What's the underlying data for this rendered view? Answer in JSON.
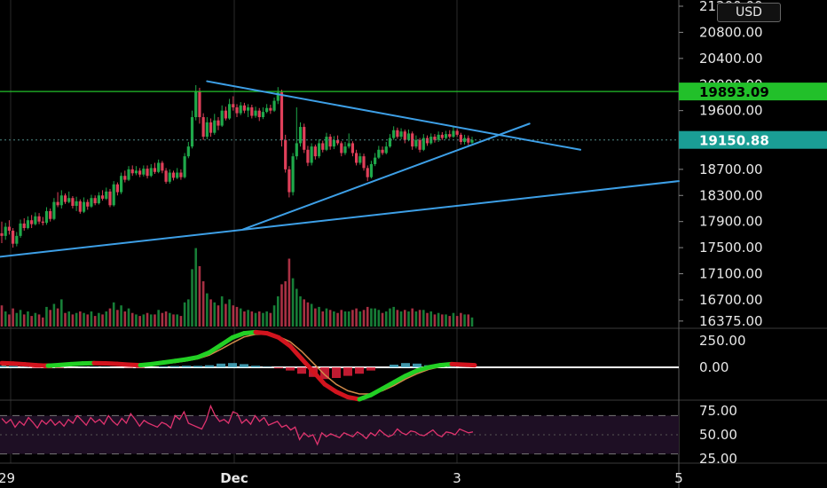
{
  "currency": "USD",
  "colors": {
    "background": "#000000",
    "up": "#1fa84a",
    "down": "#e0405a",
    "trendline": "#3d9fe6",
    "resistance": "#22c02a",
    "current_tag": "#1a9e95",
    "rsi_line": "#e0336e",
    "rsi_band": "#1e0f24"
  },
  "price_axis": {
    "ticks": [
      "21200.00",
      "20800.00",
      "20400.00",
      "20000.00",
      "19600.00",
      "18700.00",
      "18300.00",
      "17900.00",
      "17500.00",
      "17100.00",
      "16700.00",
      "16375.00"
    ]
  },
  "price_tags": {
    "resistance": "19893.09",
    "current": "19150.88"
  },
  "macd_axis": {
    "ticks": [
      "250.00",
      "0.00"
    ]
  },
  "rsi_axis": {
    "ticks": [
      "75.00",
      "50.00",
      "25.00"
    ]
  },
  "time_axis": {
    "labels": [
      "29",
      "Dec",
      "3",
      "5"
    ]
  },
  "chart_data": {
    "type": "candlestick",
    "title": "",
    "price_range": [
      16375,
      21200
    ],
    "horizontal_levels": [
      19893.09,
      19150.88
    ],
    "candles": [
      [
        17720,
        17680,
        17900,
        17570,
        14
      ],
      [
        17680,
        17820,
        17880,
        17620,
        10
      ],
      [
        17820,
        17760,
        17920,
        17700,
        8
      ],
      [
        17760,
        17560,
        17800,
        17500,
        12
      ],
      [
        17560,
        17680,
        17740,
        17520,
        9
      ],
      [
        17680,
        17870,
        17930,
        17650,
        11
      ],
      [
        17870,
        17800,
        17950,
        17760,
        8
      ],
      [
        17800,
        17920,
        17980,
        17780,
        10
      ],
      [
        17920,
        17860,
        18000,
        17800,
        7
      ],
      [
        17860,
        17980,
        18040,
        17840,
        9
      ],
      [
        17980,
        17900,
        18030,
        17860,
        8
      ],
      [
        17900,
        17880,
        17970,
        17840,
        6
      ],
      [
        17880,
        18060,
        18120,
        17850,
        13
      ],
      [
        18060,
        17940,
        18100,
        17900,
        11
      ],
      [
        17940,
        18200,
        18260,
        17920,
        15
      ],
      [
        18200,
        18150,
        18350,
        18120,
        12
      ],
      [
        18150,
        18300,
        18380,
        18100,
        18
      ],
      [
        18300,
        18200,
        18330,
        18170,
        9
      ],
      [
        18200,
        18260,
        18360,
        18180,
        10
      ],
      [
        18260,
        18140,
        18290,
        18100,
        8
      ],
      [
        18140,
        18210,
        18280,
        18060,
        9
      ],
      [
        18210,
        18050,
        18240,
        18020,
        10
      ],
      [
        18050,
        18200,
        18270,
        18030,
        9
      ],
      [
        18200,
        18130,
        18240,
        18080,
        8
      ],
      [
        18130,
        18260,
        18310,
        18110,
        10
      ],
      [
        18260,
        18180,
        18300,
        18150,
        7
      ],
      [
        18180,
        18300,
        18350,
        18160,
        9
      ],
      [
        18300,
        18250,
        18380,
        18220,
        8
      ],
      [
        18250,
        18360,
        18420,
        18230,
        10
      ],
      [
        18360,
        18150,
        18400,
        18120,
        12
      ],
      [
        18150,
        18470,
        18520,
        18130,
        16
      ],
      [
        18470,
        18350,
        18500,
        18300,
        11
      ],
      [
        18350,
        18600,
        18650,
        18320,
        14
      ],
      [
        18600,
        18540,
        18680,
        18500,
        10
      ],
      [
        18540,
        18700,
        18750,
        18520,
        12
      ],
      [
        18700,
        18640,
        18760,
        18600,
        9
      ],
      [
        18640,
        18680,
        18750,
        18610,
        8
      ],
      [
        18680,
        18620,
        18720,
        18580,
        7
      ],
      [
        18620,
        18710,
        18760,
        18590,
        8
      ],
      [
        18710,
        18600,
        18760,
        18560,
        9
      ],
      [
        18600,
        18720,
        18780,
        18580,
        8
      ],
      [
        18720,
        18660,
        18800,
        18630,
        8
      ],
      [
        18660,
        18800,
        18850,
        18640,
        11
      ],
      [
        18800,
        18680,
        18830,
        18640,
        9
      ],
      [
        18680,
        18510,
        18720,
        18480,
        10
      ],
      [
        18510,
        18650,
        18700,
        18480,
        9
      ],
      [
        18650,
        18570,
        18680,
        18530,
        8
      ],
      [
        18570,
        18650,
        18720,
        18550,
        8
      ],
      [
        18650,
        18580,
        18700,
        18540,
        7
      ],
      [
        18580,
        18900,
        18950,
        18560,
        16
      ],
      [
        18900,
        19050,
        19120,
        18870,
        18
      ],
      [
        19050,
        19500,
        19600,
        19020,
        38
      ],
      [
        19500,
        19900,
        19990,
        19450,
        52
      ],
      [
        19900,
        19500,
        19950,
        19400,
        40
      ],
      [
        19500,
        19200,
        19560,
        19150,
        30
      ],
      [
        19200,
        19420,
        19500,
        19160,
        22
      ],
      [
        19420,
        19260,
        19480,
        19200,
        18
      ],
      [
        19260,
        19450,
        19550,
        19230,
        16
      ],
      [
        19450,
        19370,
        19500,
        19300,
        14
      ],
      [
        19370,
        19600,
        19680,
        19350,
        20
      ],
      [
        19600,
        19480,
        19660,
        19450,
        15
      ],
      [
        19480,
        19700,
        19780,
        19460,
        18
      ],
      [
        19700,
        19650,
        19820,
        19600,
        14
      ],
      [
        19650,
        19560,
        19700,
        19500,
        13
      ],
      [
        19560,
        19680,
        19730,
        19530,
        12
      ],
      [
        19680,
        19600,
        19720,
        19560,
        10
      ],
      [
        19600,
        19650,
        19700,
        19500,
        11
      ],
      [
        19650,
        19520,
        19690,
        19480,
        10
      ],
      [
        19520,
        19600,
        19660,
        19490,
        9
      ],
      [
        19600,
        19500,
        19640,
        19440,
        10
      ],
      [
        19500,
        19580,
        19650,
        19470,
        9
      ],
      [
        19580,
        19640,
        19700,
        19560,
        10
      ],
      [
        19640,
        19600,
        19690,
        19550,
        9
      ],
      [
        19600,
        19750,
        19800,
        19580,
        14
      ],
      [
        19750,
        19880,
        19960,
        19700,
        20
      ],
      [
        19880,
        19150,
        19920,
        19050,
        28
      ],
      [
        19150,
        18700,
        19230,
        18650,
        30
      ],
      [
        18700,
        18350,
        18750,
        18270,
        45
      ],
      [
        18350,
        18900,
        18950,
        18300,
        32
      ],
      [
        18900,
        19100,
        19650,
        18850,
        25
      ],
      [
        19100,
        19350,
        19420,
        19050,
        20
      ],
      [
        19350,
        19000,
        19400,
        18950,
        18
      ],
      [
        19000,
        18800,
        19060,
        18750,
        16
      ],
      [
        18800,
        19050,
        19100,
        18760,
        15
      ],
      [
        19050,
        18900,
        19080,
        18850,
        12
      ],
      [
        18900,
        19100,
        19160,
        18870,
        13
      ],
      [
        19100,
        19000,
        19140,
        18960,
        10
      ],
      [
        19000,
        19200,
        19260,
        18980,
        12
      ],
      [
        19200,
        19050,
        19240,
        19000,
        11
      ],
      [
        19050,
        19150,
        19210,
        19010,
        10
      ],
      [
        19150,
        19100,
        19220,
        19070,
        9
      ],
      [
        19100,
        18950,
        19130,
        18900,
        11
      ],
      [
        18950,
        19050,
        19120,
        18920,
        10
      ],
      [
        19050,
        19100,
        19250,
        19020,
        10
      ],
      [
        19100,
        18950,
        19130,
        18900,
        11
      ],
      [
        18950,
        18800,
        19000,
        18760,
        12
      ],
      [
        18800,
        18900,
        18950,
        18770,
        10
      ],
      [
        18900,
        18720,
        18940,
        18680,
        11
      ],
      [
        18720,
        18580,
        18760,
        18520,
        13
      ],
      [
        18580,
        18780,
        18830,
        18560,
        12
      ],
      [
        18780,
        18880,
        18950,
        18750,
        12
      ],
      [
        18880,
        19000,
        19060,
        18860,
        11
      ],
      [
        19000,
        18950,
        19050,
        18920,
        9
      ],
      [
        18950,
        19050,
        19120,
        18930,
        10
      ],
      [
        19050,
        19180,
        19240,
        19030,
        12
      ],
      [
        19180,
        19300,
        19360,
        19150,
        13
      ],
      [
        19300,
        19200,
        19340,
        19170,
        11
      ],
      [
        19200,
        19280,
        19330,
        19160,
        10
      ],
      [
        19280,
        19150,
        19310,
        19100,
        11
      ],
      [
        19150,
        19250,
        19310,
        19130,
        10
      ],
      [
        19250,
        19050,
        19280,
        19000,
        12
      ],
      [
        19050,
        19150,
        19220,
        19020,
        10
      ],
      [
        19150,
        19000,
        19180,
        18960,
        11
      ],
      [
        19000,
        19180,
        19240,
        18980,
        11
      ],
      [
        19180,
        19100,
        19220,
        19060,
        9
      ],
      [
        19100,
        19200,
        19250,
        19080,
        10
      ],
      [
        19200,
        19150,
        19240,
        19110,
        8
      ],
      [
        19150,
        19230,
        19280,
        19120,
        9
      ],
      [
        19230,
        19180,
        19270,
        19150,
        8
      ],
      [
        19180,
        19240,
        19290,
        19160,
        8
      ],
      [
        19240,
        19200,
        19300,
        19170,
        7
      ],
      [
        19200,
        19290,
        19350,
        19180,
        9
      ],
      [
        19290,
        19230,
        19320,
        19200,
        7
      ],
      [
        19230,
        19120,
        19260,
        19080,
        9
      ],
      [
        19120,
        19180,
        19230,
        19080,
        8
      ],
      [
        19180,
        19110,
        19220,
        19070,
        8
      ],
      [
        19110,
        19151,
        19200,
        19090,
        6
      ]
    ],
    "trendlines": [
      {
        "name": "upper",
        "points": [
          [
            0.305,
            20050
          ],
          [
            0.855,
            19000
          ]
        ]
      },
      {
        "name": "lower",
        "points": [
          [
            0.358,
            17780
          ],
          [
            0.78,
            19400
          ]
        ]
      },
      {
        "name": "long-support",
        "points": [
          [
            0.0,
            17360
          ],
          [
            1.0,
            18520
          ]
        ]
      }
    ],
    "macd": {
      "range": [
        -300,
        350
      ],
      "macd_line": [
        40,
        35,
        28,
        20,
        15,
        22,
        30,
        36,
        40,
        38,
        32,
        25,
        20,
        30,
        45,
        60,
        75,
        95,
        140,
        210,
        280,
        320,
        330,
        320,
        280,
        200,
        80,
        -40,
        -160,
        -230,
        -280,
        -300,
        -260,
        -200,
        -140,
        -80,
        -30,
        0,
        20,
        30,
        25,
        20
      ],
      "signal_line": [
        20,
        22,
        25,
        28,
        30,
        30,
        32,
        33,
        35,
        34,
        32,
        30,
        28,
        30,
        35,
        45,
        60,
        80,
        115,
        170,
        230,
        285,
        310,
        310,
        290,
        240,
        150,
        40,
        -70,
        -160,
        -220,
        -250,
        -250,
        -220,
        -170,
        -110,
        -60,
        -20,
        5,
        20,
        22,
        20
      ],
      "histogram": [
        15,
        12,
        5,
        -5,
        -10,
        -6,
        -2,
        2,
        4,
        3,
        0,
        -4,
        -6,
        0,
        8,
        12,
        15,
        14,
        20,
        35,
        40,
        30,
        15,
        5,
        -10,
        -30,
        -60,
        -90,
        -110,
        -100,
        -80,
        -60,
        -30,
        0,
        25,
        40,
        35,
        20,
        10,
        5,
        2,
        0
      ]
    },
    "rsi": {
      "range": [
        25,
        85
      ],
      "upper_band": 70,
      "mid": 50,
      "lower_band": 30,
      "values": [
        67,
        62,
        66,
        58,
        64,
        60,
        68,
        63,
        57,
        65,
        61,
        66,
        60,
        64,
        59,
        66,
        62,
        70,
        65,
        60,
        68,
        63,
        66,
        61,
        70,
        64,
        60,
        67,
        62,
        72,
        66,
        59,
        65,
        62,
        60,
        58,
        63,
        61,
        57,
        70,
        66,
        74,
        62,
        60,
        58,
        56,
        65,
        80,
        70,
        64,
        66,
        62,
        74,
        72,
        62,
        66,
        61,
        70,
        64,
        68,
        60,
        62,
        64,
        58,
        60,
        55,
        58,
        45,
        52,
        48,
        50,
        40,
        52,
        48,
        51,
        49,
        47,
        52,
        50,
        48,
        53,
        50,
        46,
        52,
        49,
        55,
        51,
        48,
        50,
        56,
        52,
        50,
        54,
        53,
        50,
        49,
        52,
        55,
        50,
        48,
        53,
        52,
        50,
        56,
        54,
        52,
        53
      ]
    }
  }
}
